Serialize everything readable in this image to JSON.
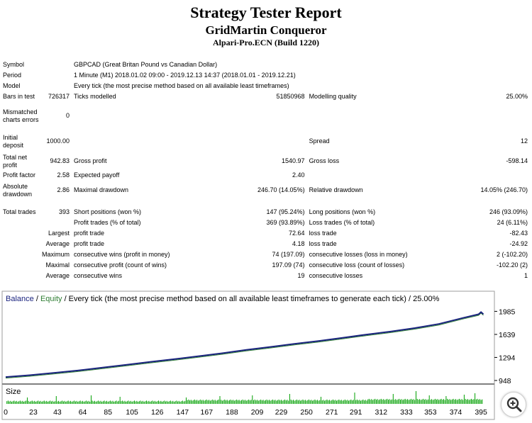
{
  "report": {
    "title": "Strategy Tester Report",
    "expert": "GridMartin Conqueror",
    "server": "Alpari-Pro.ECN (Build 1220)"
  },
  "stats": {
    "symbol_label": "Symbol",
    "symbol_value": "GBPCAD (Great Britan Pound vs Canadian Dollar)",
    "period_label": "Period",
    "period_value": "1 Minute (M1) 2018.01.02 09:00 - 2019.12.13 14:37 (2018.01.01 - 2019.12.21)",
    "model_label": "Model",
    "model_value": "Every tick (the most precise method based on all available least timeframes)",
    "bars_label": "Bars in test",
    "bars_value": "726317",
    "ticks_label": "Ticks modelled",
    "ticks_value": "51850968",
    "quality_label": "Modelling quality",
    "quality_value": "25.00%",
    "mismatched_label": "Mismatched charts errors",
    "mismatched_value": "0",
    "deposit_label": "Initial deposit",
    "deposit_value": "1000.00",
    "spread_label": "Spread",
    "spread_value": "12",
    "net_profit_label": "Total net profit",
    "net_profit_value": "942.83",
    "gross_profit_label": "Gross profit",
    "gross_profit_value": "1540.97",
    "gross_loss_label": "Gross loss",
    "gross_loss_value": "-598.14",
    "profit_factor_label": "Profit factor",
    "profit_factor_value": "2.58",
    "expected_payoff_label": "Expected payoff",
    "expected_payoff_value": "2.40",
    "abs_drawdown_label": "Absolute drawdown",
    "abs_drawdown_value": "2.86",
    "max_drawdown_label": "Maximal drawdown",
    "max_drawdown_value": "246.70 (14.05%)",
    "rel_drawdown_label": "Relative drawdown",
    "rel_drawdown_value": "14.05% (246.70)",
    "total_trades_label": "Total trades",
    "total_trades_value": "393",
    "short_label": "Short positions (won %)",
    "short_value": "147 (95.24%)",
    "long_label": "Long positions (won %)",
    "long_value": "246 (93.09%)",
    "profit_trades_label": "Profit trades (% of total)",
    "profit_trades_value": "369 (93.89%)",
    "loss_trades_label": "Loss trades (% of total)",
    "loss_trades_value": "24 (6.11%)",
    "largest_label": "Largest",
    "largest_profit_label": "profit trade",
    "largest_profit_value": "72.64",
    "largest_loss_label": "loss trade",
    "largest_loss_value": "-82.43",
    "average_label": "Average",
    "average_profit_label": "profit trade",
    "average_profit_value": "4.18",
    "average_loss_label": "loss trade",
    "average_loss_value": "-24.92",
    "maximum_label": "Maximum",
    "max_cons_wins_label": "consecutive wins (profit in money)",
    "max_cons_wins_value": "74 (197.09)",
    "max_cons_losses_label": "consecutive losses (loss in money)",
    "max_cons_losses_value": "2 (-102.20)",
    "maximal_label": "Maximal",
    "maximal_cons_profit_label": "consecutive profit (count of wins)",
    "maximal_cons_profit_value": "197.09 (74)",
    "maximal_cons_loss_label": "consecutive loss (count of losses)",
    "maximal_cons_loss_value": "-102.20 (2)",
    "average2_label": "Average",
    "avg_cons_wins_label": "consecutive wins",
    "avg_cons_wins_value": "19",
    "avg_cons_losses_label": "consecutive losses",
    "avg_cons_losses_value": "1"
  },
  "chart_data": {
    "type": "line",
    "legend_balance": "Balance",
    "legend_sep1": " / ",
    "legend_equity": "Equity",
    "legend_rest": " / Every tick (the most precise method based on all available least timeframes to generate each tick) / 25.00%",
    "size_label": "Size",
    "ylim": [
      948,
      2085
    ],
    "y_ticks": [
      1985,
      1639,
      1294,
      948
    ],
    "xlim": [
      0,
      402
    ],
    "x_ticks": [
      0,
      23,
      43,
      64,
      85,
      105,
      126,
      147,
      167,
      188,
      209,
      229,
      250,
      271,
      291,
      312,
      333,
      353,
      374,
      395
    ],
    "series": [
      {
        "name": "Balance",
        "color": "#1a237e",
        "x": [
          0,
          20,
          40,
          60,
          80,
          100,
          120,
          140,
          160,
          180,
          200,
          220,
          240,
          260,
          280,
          300,
          320,
          340,
          360,
          380,
          393,
          395,
          397
        ],
        "y": [
          1000,
          1028,
          1063,
          1098,
          1140,
          1183,
          1227,
          1268,
          1313,
          1357,
          1407,
          1452,
          1497,
          1541,
          1589,
          1638,
          1682,
          1734,
          1796,
          1886,
          1942,
          1973,
          1943
        ]
      }
    ],
    "equity_color": "#2e7d32",
    "size_color": "#00a000",
    "grid": false
  }
}
